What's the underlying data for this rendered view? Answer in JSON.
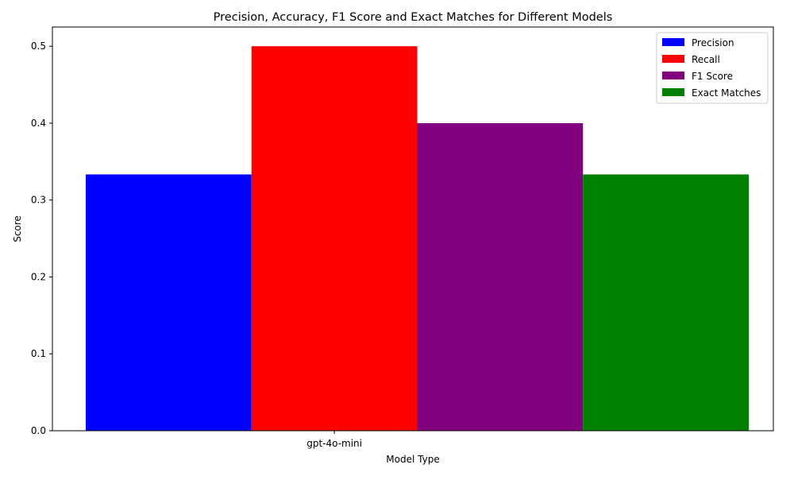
{
  "chart_data": {
    "type": "bar",
    "title": "Precision, Accuracy, F1 Score and Exact Matches for Different Models",
    "xlabel": "Model Type",
    "ylabel": "Score",
    "categories": [
      "gpt-4o-mini"
    ],
    "series": [
      {
        "name": "Precision",
        "color": "#0000ff",
        "values": [
          0.3333
        ]
      },
      {
        "name": "Recall",
        "color": "#ff0000",
        "values": [
          0.5
        ]
      },
      {
        "name": "F1 Score",
        "color": "#800080",
        "values": [
          0.4
        ]
      },
      {
        "name": "Exact Matches",
        "color": "#008000",
        "values": [
          0.3333
        ]
      }
    ],
    "ylim": [
      0,
      0.525
    ],
    "yticks": [
      0.0,
      0.1,
      0.2,
      0.3,
      0.4,
      0.5
    ],
    "ytick_labels": [
      "0.0",
      "0.1",
      "0.2",
      "0.3",
      "0.4",
      "0.5"
    ],
    "grid": false,
    "legend_position": "top-right"
  }
}
